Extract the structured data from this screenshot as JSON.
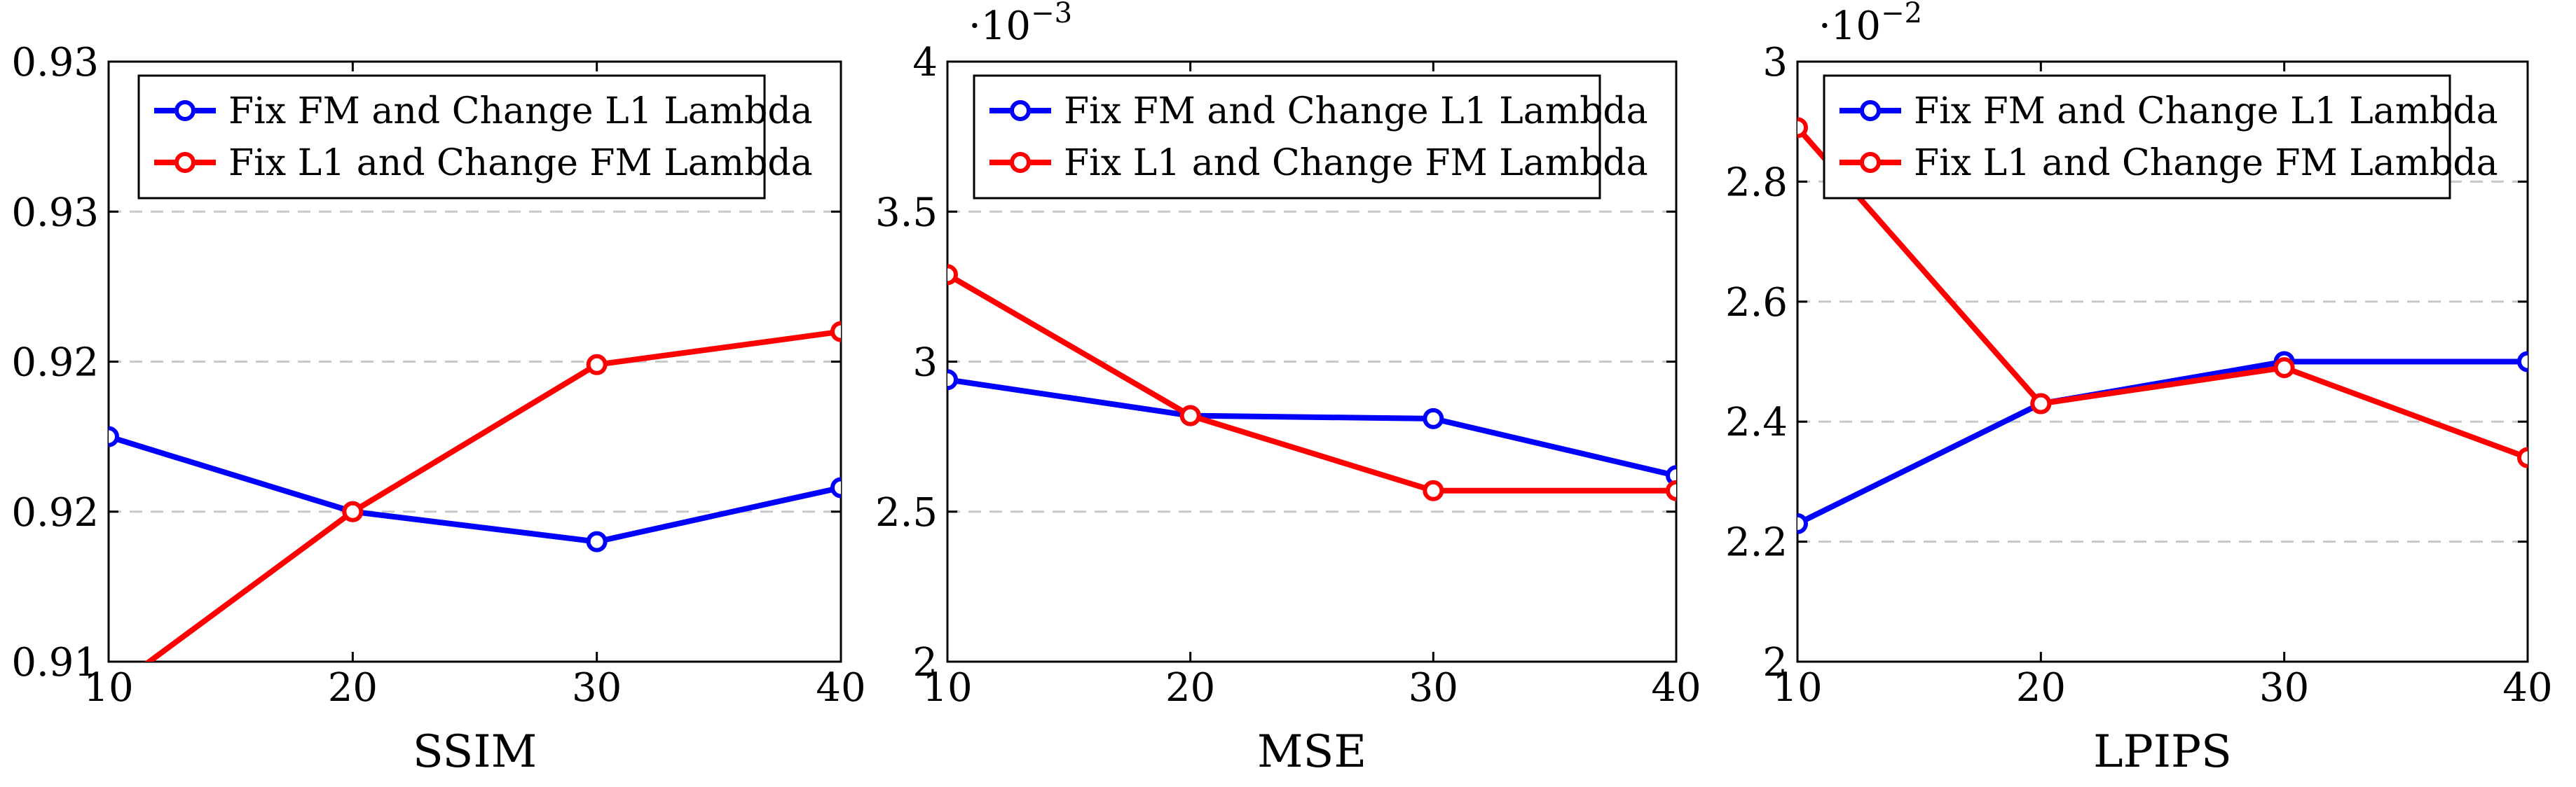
{
  "chart_data": [
    {
      "type": "line",
      "title": "",
      "xlabel": "SSIM",
      "ylabel": "",
      "x": [
        10,
        20,
        30,
        40
      ],
      "xlim": [
        10,
        40
      ],
      "ylim": [
        0.91,
        0.93
      ],
      "yticks": [
        0.91,
        0.915,
        0.92,
        0.925,
        0.93
      ],
      "ytick_labels": [
        "0.91",
        "0.92",
        "0.92",
        "0.93",
        "0.93"
      ],
      "xtick_labels": [
        "10",
        "20",
        "30",
        "40"
      ],
      "scale_factor": null,
      "grid": "horizontal-dashed",
      "legend": "top-left",
      "series": [
        {
          "name": "Fix FM and Change L1 Lambda",
          "color": "#0000ff",
          "values": [
            0.9175,
            0.915,
            0.914,
            0.9158
          ]
        },
        {
          "name": "Fix L1 and Change FM Lambda",
          "color": "#ff0000",
          "values": [
            0.909,
            0.915,
            0.9199,
            0.921
          ]
        }
      ]
    },
    {
      "type": "line",
      "title": "",
      "xlabel": "MSE",
      "ylabel": "",
      "x": [
        10,
        20,
        30,
        40
      ],
      "xlim": [
        10,
        40
      ],
      "ylim": [
        2.0,
        4.0
      ],
      "yticks": [
        2.0,
        2.5,
        3.0,
        3.5,
        4.0
      ],
      "ytick_labels": [
        "2",
        "2.5",
        "3",
        "3.5",
        "4"
      ],
      "xtick_labels": [
        "10",
        "20",
        "30",
        "40"
      ],
      "scale_factor": {
        "base": "·10",
        "exponent": "−3"
      },
      "grid": "horizontal-dashed",
      "legend": "top-right",
      "series": [
        {
          "name": "Fix FM and Change L1 Lambda",
          "color": "#0000ff",
          "values": [
            2.94,
            2.82,
            2.81,
            2.62
          ]
        },
        {
          "name": "Fix L1 and Change FM Lambda",
          "color": "#ff0000",
          "values": [
            3.29,
            2.82,
            2.57,
            2.57
          ]
        }
      ]
    },
    {
      "type": "line",
      "title": "",
      "xlabel": "LPIPS",
      "ylabel": "",
      "x": [
        10,
        20,
        30,
        40
      ],
      "xlim": [
        10,
        40
      ],
      "ylim": [
        2.0,
        3.0
      ],
      "yticks": [
        2.0,
        2.2,
        2.4,
        2.6,
        2.8,
        3.0
      ],
      "ytick_labels": [
        "2",
        "2.2",
        "2.4",
        "2.6",
        "2.8",
        "3"
      ],
      "xtick_labels": [
        "10",
        "20",
        "30",
        "40"
      ],
      "scale_factor": {
        "base": "·10",
        "exponent": "−2"
      },
      "grid": "horizontal-dashed",
      "legend": "top-right",
      "series": [
        {
          "name": "Fix FM and Change L1 Lambda",
          "color": "#0000ff",
          "values": [
            2.23,
            2.43,
            2.5,
            2.5
          ]
        },
        {
          "name": "Fix L1 and Change FM Lambda",
          "color": "#ff0000",
          "values": [
            2.89,
            2.43,
            2.49,
            2.34
          ]
        }
      ]
    }
  ]
}
